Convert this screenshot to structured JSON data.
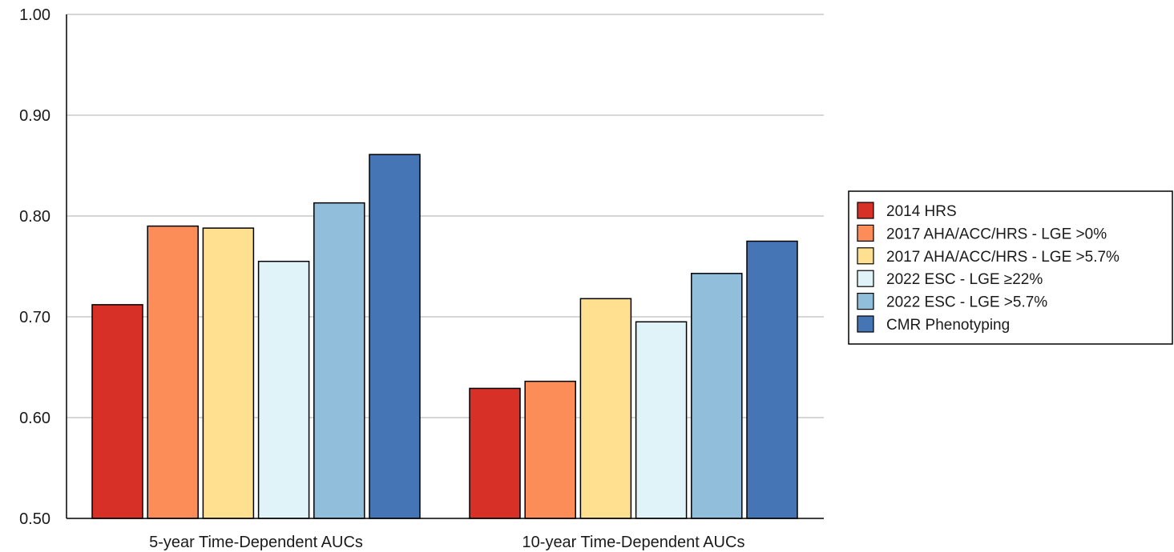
{
  "chart_data": {
    "type": "bar",
    "categories": [
      "5-year Time-Dependent AUCs",
      "10-year Time-Dependent AUCs"
    ],
    "series": [
      {
        "name": "2014 HRS",
        "color": "#d73027",
        "values": [
          0.712,
          0.629
        ]
      },
      {
        "name": "2017 AHA/ACC/HRS - LGE >0%",
        "color": "#fc8d59",
        "values": [
          0.79,
          0.636
        ]
      },
      {
        "name": "2017 AHA/ACC/HRS - LGE >5.7%",
        "color": "#fee090",
        "values": [
          0.788,
          0.718
        ]
      },
      {
        "name": "2022 ESC - LGE ≥22%",
        "color": "#e0f3f8",
        "values": [
          0.755,
          0.695
        ]
      },
      {
        "name": "2022 ESC - LGE >5.7%",
        "color": "#91bfdb",
        "values": [
          0.813,
          0.743
        ]
      },
      {
        "name": "CMR Phenotyping",
        "color": "#4575b4",
        "values": [
          0.861,
          0.775
        ]
      }
    ],
    "yticks": [
      "0.50",
      "0.60",
      "0.70",
      "0.80",
      "0.90",
      "1.00"
    ],
    "ylim": [
      0.5,
      1.0
    ],
    "grid": true,
    "legend_position": "right"
  }
}
